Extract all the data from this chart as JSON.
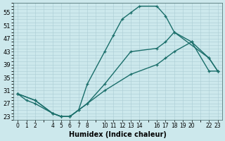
{
  "xlabel": "Humidex (Indice chaleur)",
  "bg_color": "#cce8ec",
  "grid_color": "#aacdd4",
  "line_color": "#1a6e6a",
  "xlim": [
    -0.5,
    23.5
  ],
  "ylim": [
    22,
    58
  ],
  "xticks": [
    0,
    1,
    2,
    4,
    5,
    6,
    7,
    8,
    10,
    11,
    12,
    13,
    14,
    16,
    17,
    18,
    19,
    20,
    22,
    23
  ],
  "yticks": [
    23,
    27,
    31,
    35,
    39,
    43,
    47,
    51,
    55
  ],
  "line1_x": [
    0,
    1,
    2,
    4,
    5,
    6,
    7,
    8,
    10,
    11,
    12,
    13,
    14,
    16,
    17,
    18,
    22,
    23
  ],
  "line1_y": [
    30,
    28,
    27,
    24,
    23,
    23,
    25,
    33,
    43,
    48,
    53,
    55,
    57,
    57,
    54,
    49,
    41,
    37
  ],
  "line2_x": [
    0,
    2,
    4,
    5,
    6,
    7,
    8,
    10,
    13,
    16,
    17,
    18,
    20,
    22,
    23
  ],
  "line2_y": [
    30,
    28,
    24,
    23,
    23,
    25,
    27,
    33,
    43,
    44,
    46,
    49,
    46,
    41,
    37
  ],
  "line3_x": [
    0,
    2,
    4,
    5,
    6,
    8,
    10,
    13,
    16,
    17,
    18,
    20,
    22,
    23
  ],
  "line3_y": [
    30,
    28,
    24,
    23,
    23,
    27,
    31,
    36,
    39,
    41,
    43,
    46,
    37,
    37
  ],
  "marker": "+",
  "markersize": 3.5,
  "linewidth": 1.0
}
